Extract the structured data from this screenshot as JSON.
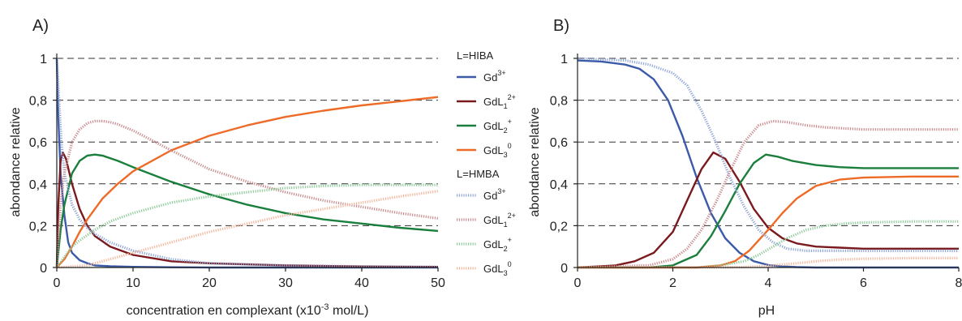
{
  "panels": [
    {
      "label": "A)",
      "chart_data": {
        "type": "line",
        "xlabel": "concentration en complexant (x10",
        "xlabel_exp": "-3",
        "xlabel_end": " mol/L)",
        "ylabel": "abondance relative",
        "xlim": [
          0,
          50
        ],
        "ylim": [
          0,
          1
        ],
        "x_ticks": [
          0,
          10,
          20,
          30,
          40,
          50
        ],
        "x_tick_labels": [
          "0",
          "10",
          "20",
          "30",
          "40",
          "50"
        ],
        "y_ticks": [
          0,
          0.2,
          0.4,
          0.6,
          0.8,
          1
        ],
        "y_tick_labels": [
          "0",
          "0,2",
          "0,4",
          "0,6",
          "0,8",
          "1"
        ],
        "grid": "dashed horizontal",
        "series": [
          {
            "group": "L=HIBA",
            "style": "solid",
            "color": "#3B5BA9",
            "x": [
              0,
              0.2,
              0.5,
              1,
              1.5,
              2,
              3,
              4,
              5,
              7,
              10,
              15,
              20,
              30,
              40,
              50
            ],
            "y": [
              1.0,
              0.72,
              0.45,
              0.25,
              0.12,
              0.07,
              0.035,
              0.02,
              0.01,
              0.006,
              0.003,
              0.001,
              0,
              0,
              0,
              0
            ]
          },
          {
            "group": "L=HIBA",
            "style": "solid",
            "color": "#7B1A1E",
            "x": [
              0,
              0.2,
              0.5,
              0.8,
              1.2,
              2,
              3,
              4,
              5,
              7,
              10,
              15,
              20,
              30,
              40,
              50
            ],
            "y": [
              0,
              0.3,
              0.51,
              0.55,
              0.52,
              0.4,
              0.28,
              0.2,
              0.15,
              0.1,
              0.06,
              0.03,
              0.02,
              0.01,
              0.005,
              0.003
            ]
          },
          {
            "group": "L=HIBA",
            "style": "solid",
            "color": "#1A7F3C",
            "x": [
              0,
              0.5,
              1,
              2,
              3,
              4,
              5,
              6,
              8,
              10,
              15,
              20,
              25,
              30,
              35,
              40,
              45,
              50
            ],
            "y": [
              0,
              0.18,
              0.3,
              0.45,
              0.51,
              0.535,
              0.54,
              0.535,
              0.51,
              0.48,
              0.41,
              0.35,
              0.3,
              0.26,
              0.23,
              0.21,
              0.19,
              0.175
            ]
          },
          {
            "group": "L=HIBA",
            "style": "solid",
            "color": "#EE6A27",
            "x": [
              0,
              1,
              2,
              3,
              4,
              6,
              8,
              10,
              15,
              20,
              25,
              30,
              35,
              40,
              45,
              50
            ],
            "y": [
              0,
              0.04,
              0.1,
              0.17,
              0.23,
              0.33,
              0.4,
              0.46,
              0.56,
              0.63,
              0.68,
              0.72,
              0.75,
              0.775,
              0.795,
              0.815
            ]
          },
          {
            "group": "L=HMBA",
            "style": "dotted",
            "color": "#8FA6D8",
            "x": [
              0,
              0.3,
              0.6,
              1,
              2,
              3,
              4,
              5,
              7,
              10,
              15,
              20,
              30,
              40,
              50
            ],
            "y": [
              1.0,
              0.8,
              0.6,
              0.45,
              0.3,
              0.23,
              0.19,
              0.16,
              0.12,
              0.08,
              0.04,
              0.02,
              0.01,
              0.005,
              0.003
            ]
          },
          {
            "group": "L=HMBA",
            "style": "dotted",
            "color": "#C98A8C",
            "x": [
              0,
              0.5,
              1,
              2,
              3,
              4,
              5,
              6,
              7,
              8,
              10,
              15,
              20,
              25,
              30,
              35,
              40,
              45,
              50
            ],
            "y": [
              0,
              0.3,
              0.45,
              0.6,
              0.66,
              0.69,
              0.7,
              0.7,
              0.695,
              0.685,
              0.655,
              0.56,
              0.47,
              0.41,
              0.36,
              0.32,
              0.29,
              0.26,
              0.235
            ]
          },
          {
            "group": "L=HMBA",
            "style": "dotted",
            "color": "#8FCB9B",
            "x": [
              0,
              1,
              2,
              3,
              5,
              7,
              10,
              15,
              20,
              25,
              30,
              35,
              40,
              45,
              50
            ],
            "y": [
              0,
              0.05,
              0.1,
              0.13,
              0.18,
              0.22,
              0.26,
              0.31,
              0.34,
              0.36,
              0.38,
              0.39,
              0.395,
              0.395,
              0.395
            ]
          },
          {
            "group": "L=HMBA",
            "style": "dotted",
            "color": "#F3B79C",
            "x": [
              0,
              2,
              4,
              5,
              7,
              10,
              15,
              20,
              25,
              30,
              35,
              40,
              45,
              50
            ],
            "y": [
              0,
              0.005,
              0.01,
              0.02,
              0.04,
              0.07,
              0.12,
              0.17,
              0.21,
              0.25,
              0.28,
              0.31,
              0.34,
              0.365
            ]
          }
        ]
      }
    },
    {
      "label": "B)",
      "chart_data": {
        "type": "line",
        "xlabel": "pH",
        "ylabel": "abondance relative",
        "xlim": [
          0,
          8
        ],
        "ylim": [
          0,
          1
        ],
        "x_ticks": [
          0,
          2,
          4,
          6,
          8
        ],
        "x_tick_labels": [
          "0",
          "2",
          "4",
          "6",
          "8"
        ],
        "y_ticks": [
          0,
          0.2,
          0.4,
          0.6,
          0.8,
          1
        ],
        "y_tick_labels": [
          "0",
          "0,2",
          "0,4",
          "0,6",
          "0,8",
          "1"
        ],
        "grid": "dashed horizontal",
        "series": [
          {
            "group": "L=HIBA",
            "style": "solid",
            "color": "#3B5BA9",
            "x": [
              0,
              0.5,
              1,
              1.3,
              1.6,
              1.9,
              2.2,
              2.5,
              2.8,
              3.1,
              3.4,
              3.7,
              4,
              4.3,
              4.6,
              5,
              6,
              8
            ],
            "y": [
              0.99,
              0.985,
              0.97,
              0.95,
              0.9,
              0.8,
              0.63,
              0.43,
              0.26,
              0.14,
              0.07,
              0.03,
              0.012,
              0.005,
              0.002,
              0,
              0,
              0
            ]
          },
          {
            "group": "L=HIBA",
            "style": "solid",
            "color": "#7B1A1E",
            "x": [
              0,
              0.8,
              1.2,
              1.6,
              2,
              2.3,
              2.6,
              2.85,
              3.1,
              3.4,
              3.7,
              4,
              4.3,
              4.6,
              5,
              5.5,
              6,
              7,
              8
            ],
            "y": [
              0,
              0.01,
              0.03,
              0.07,
              0.17,
              0.32,
              0.47,
              0.55,
              0.52,
              0.41,
              0.28,
              0.19,
              0.14,
              0.115,
              0.1,
              0.095,
              0.09,
              0.09,
              0.09
            ]
          },
          {
            "group": "L=HIBA",
            "style": "solid",
            "color": "#1A7F3C",
            "x": [
              0,
              1.5,
              2,
              2.5,
              2.8,
              3.1,
              3.4,
              3.7,
              3.95,
              4.2,
              4.5,
              5,
              5.5,
              6,
              7,
              8
            ],
            "y": [
              0,
              0,
              0.01,
              0.06,
              0.15,
              0.27,
              0.4,
              0.5,
              0.54,
              0.53,
              0.51,
              0.49,
              0.48,
              0.475,
              0.475,
              0.475
            ]
          },
          {
            "group": "L=HIBA",
            "style": "solid",
            "color": "#EE6A27",
            "x": [
              0,
              2.5,
              3,
              3.3,
              3.6,
              4,
              4.3,
              4.6,
              5,
              5.5,
              6,
              7,
              8
            ],
            "y": [
              0,
              0,
              0.01,
              0.03,
              0.08,
              0.18,
              0.26,
              0.33,
              0.39,
              0.42,
              0.43,
              0.435,
              0.435
            ]
          },
          {
            "group": "L=HMBA",
            "style": "dotted",
            "color": "#8FA6D8",
            "x": [
              0,
              0.5,
              1,
              1.5,
              2,
              2.3,
              2.6,
              2.9,
              3.2,
              3.5,
              3.8,
              4.1,
              4.4,
              4.8,
              5.5,
              6.5,
              8
            ],
            "y": [
              1.0,
              0.995,
              0.99,
              0.97,
              0.93,
              0.87,
              0.75,
              0.6,
              0.43,
              0.29,
              0.18,
              0.12,
              0.09,
              0.08,
              0.08,
              0.08,
              0.08
            ]
          },
          {
            "group": "L=HMBA",
            "style": "dotted",
            "color": "#C98A8C",
            "x": [
              0,
              1.5,
              2,
              2.3,
              2.6,
              2.9,
              3.2,
              3.5,
              3.8,
              4.1,
              4.4,
              4.8,
              5.2,
              6,
              7,
              8
            ],
            "y": [
              0,
              0.01,
              0.04,
              0.09,
              0.18,
              0.31,
              0.46,
              0.6,
              0.68,
              0.7,
              0.695,
              0.68,
              0.67,
              0.66,
              0.66,
              0.66
            ]
          },
          {
            "group": "L=HMBA",
            "style": "dotted",
            "color": "#8FCB9B",
            "x": [
              0,
              2.5,
              3,
              3.5,
              3.8,
              4.1,
              4.4,
              4.8,
              5.2,
              5.6,
              6,
              7,
              8
            ],
            "y": [
              0,
              0,
              0.01,
              0.03,
              0.06,
              0.1,
              0.14,
              0.18,
              0.2,
              0.21,
              0.215,
              0.22,
              0.22
            ]
          },
          {
            "group": "L=HMBA",
            "style": "dotted",
            "color": "#F3B79C",
            "x": [
              0,
              3,
              3.5,
              4,
              4.5,
              5,
              5.5,
              6,
              7,
              8
            ],
            "y": [
              0,
              0,
              0.002,
              0.008,
              0.018,
              0.03,
              0.038,
              0.042,
              0.045,
              0.045
            ]
          }
        ]
      }
    }
  ],
  "legend": {
    "groups": [
      {
        "title": "L=HIBA",
        "style": "solid",
        "items": [
          {
            "base": "Gd",
            "sub": "",
            "sup": "3+",
            "color": "#3B5BA9"
          },
          {
            "base": "GdL",
            "sub": "1",
            "sup": "2+",
            "color": "#7B1A1E"
          },
          {
            "base": "GdL",
            "sub": "2",
            "sup": "+",
            "color": "#1A7F3C"
          },
          {
            "base": "GdL",
            "sub": "3",
            "sup": "0",
            "color": "#EE6A27"
          }
        ]
      },
      {
        "title": "L=HMBA",
        "style": "dotted",
        "items": [
          {
            "base": "Gd",
            "sub": "",
            "sup": "3+",
            "color": "#8FA6D8"
          },
          {
            "base": "GdL",
            "sub": "1",
            "sup": "2+",
            "color": "#C98A8C"
          },
          {
            "base": "GdL",
            "sub": "2",
            "sup": "+",
            "color": "#8FCB9B"
          },
          {
            "base": "GdL",
            "sub": "3",
            "sup": "0",
            "color": "#F3B79C"
          }
        ]
      }
    ]
  }
}
